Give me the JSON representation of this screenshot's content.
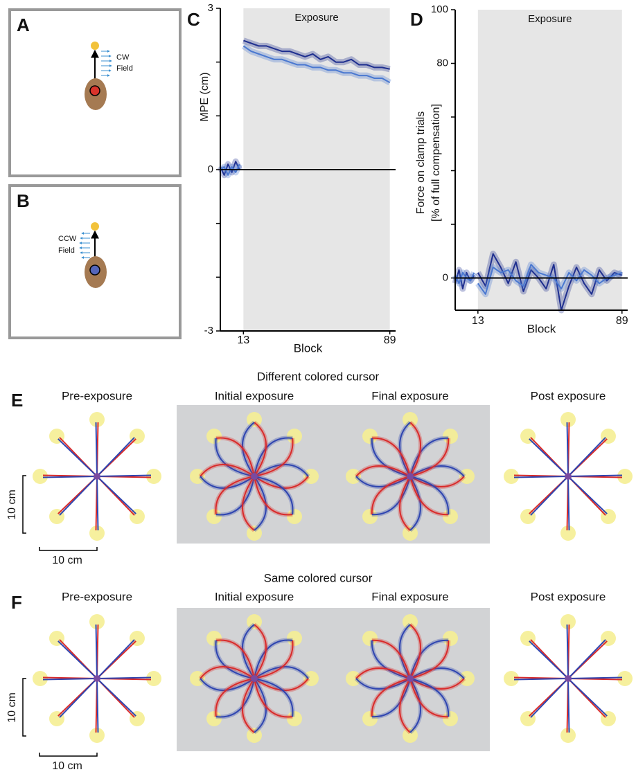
{
  "panel_labels": [
    "A",
    "B",
    "C",
    "D",
    "E",
    "F"
  ],
  "panel_a": {
    "field": "CW",
    "field_word": "Field"
  },
  "panel_b": {
    "field": "CCW",
    "field_word": "Field"
  },
  "chart_data": [
    {
      "type": "line",
      "x_label": "Block",
      "y_label": "MPE (cm)",
      "shade_label": "Exposure",
      "shade": [
        13,
        89
      ],
      "hline": 0,
      "x": [
        1,
        3,
        5,
        7,
        9,
        11,
        12,
        13,
        17,
        21,
        25,
        29,
        33,
        37,
        41,
        45,
        49,
        53,
        57,
        61,
        65,
        69,
        73,
        77,
        81,
        85,
        89,
        90,
        91
      ],
      "xlim": [
        1,
        92
      ],
      "xticks": [
        13,
        89
      ],
      "ylim": [
        -3,
        3
      ],
      "yticks": [
        -3,
        0,
        3
      ],
      "yminor_ticks": [
        -2,
        -1,
        1,
        2
      ],
      "series": [
        {
          "color": "#1f2f8f",
          "values": [
            0.05,
            -0.1,
            0.1,
            -0.05,
            0.15,
            0.0,
            null,
            2.4,
            2.35,
            2.3,
            2.3,
            2.25,
            2.2,
            2.2,
            2.15,
            2.1,
            2.15,
            2.05,
            2.1,
            2.0,
            2.0,
            2.05,
            1.95,
            1.95,
            1.9,
            1.9,
            1.87,
            null,
            0.0
          ]
        },
        {
          "color": "#4a78d0",
          "values": [
            0.0,
            0.05,
            -0.1,
            0.05,
            -0.05,
            0.1,
            null,
            2.3,
            2.2,
            2.15,
            2.1,
            2.05,
            2.05,
            2.0,
            1.95,
            1.95,
            1.9,
            1.9,
            1.85,
            1.85,
            1.8,
            1.8,
            1.75,
            1.75,
            1.7,
            1.7,
            1.62,
            null,
            -0.05
          ]
        }
      ]
    },
    {
      "type": "line",
      "x_label": "Block",
      "y_label": [
        "Force on clamp trials",
        "[% of full compensation]"
      ],
      "shade_label": "Exposure",
      "shade": [
        13,
        89
      ],
      "hline": 0,
      "x": [
        1,
        3,
        5,
        7,
        9,
        11,
        12,
        13,
        17,
        21,
        25,
        29,
        33,
        37,
        41,
        45,
        49,
        53,
        57,
        61,
        65,
        69,
        73,
        77,
        81,
        85,
        89,
        90,
        91
      ],
      "xlim": [
        1,
        92
      ],
      "xticks": [
        13,
        89
      ],
      "ylim": [
        -12,
        100
      ],
      "yticks": [
        0,
        80,
        100
      ],
      "yminor_ticks": [
        20,
        40,
        60
      ],
      "series": [
        {
          "color": "#1f2f8f",
          "values": [
            -2,
            3,
            -4,
            2,
            -1,
            1,
            null,
            2,
            -3,
            9,
            4,
            -2,
            6,
            -5,
            3,
            0,
            -4,
            5,
            -12,
            -3,
            4,
            -2,
            -6,
            3,
            -1,
            2,
            1,
            null,
            null
          ]
        },
        {
          "color": "#4a78d0",
          "values": [
            1,
            -2,
            2,
            0,
            -1,
            2,
            null,
            -2,
            -6,
            4,
            2,
            3,
            -1,
            -3,
            5,
            2,
            1,
            0,
            -4,
            2,
            -1,
            3,
            1,
            -2,
            0,
            1,
            2,
            null,
            null
          ]
        }
      ]
    }
  ],
  "panel_e": {
    "title": "Different colored cursor",
    "conditions": [
      "Pre-exposure",
      "Initial exposure",
      "Final exposure",
      "Post exposure"
    ],
    "scale_labels": [
      "10 cm",
      "10 cm"
    ]
  },
  "panel_f": {
    "title": "Same colored cursor",
    "conditions": [
      "Pre-exposure",
      "Initial exposure",
      "Final exposure",
      "Post exposure"
    ],
    "scale_labels": [
      "10 cm",
      "10 cm"
    ]
  }
}
